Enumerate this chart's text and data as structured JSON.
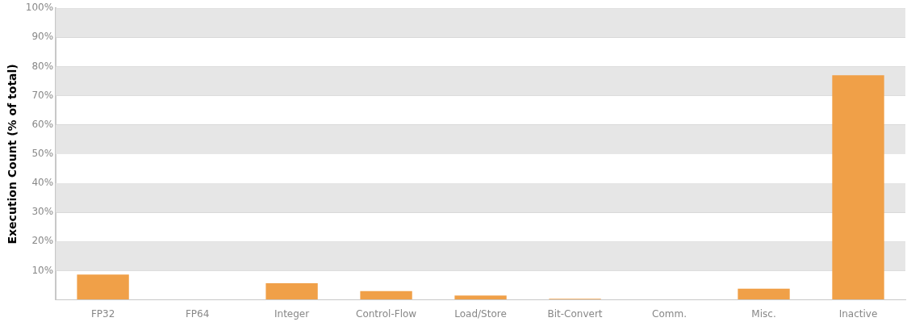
{
  "chart_data": {
    "type": "bar",
    "ylabel": "Execution Count (% of total)",
    "categories": [
      "FP32",
      "FP64",
      "Integer",
      "Control-Flow",
      "Load/Store",
      "Bit-Convert",
      "Comm.",
      "Misc.",
      "Inactive"
    ],
    "values": [
      8.7,
      0,
      5.7,
      3.0,
      1.5,
      0.4,
      0,
      3.8,
      77.0
    ],
    "color": "#f0a048",
    "ylim": [
      0,
      100
    ],
    "yticks": [
      {
        "value": 0,
        "label": null
      },
      {
        "value": 10,
        "label": "10%"
      },
      {
        "value": 20,
        "label": "20%"
      },
      {
        "value": 30,
        "label": "30%"
      },
      {
        "value": 40,
        "label": "40%"
      },
      {
        "value": 50,
        "label": "50%"
      },
      {
        "value": 60,
        "label": "60%"
      },
      {
        "value": 70,
        "label": "70%"
      },
      {
        "value": 80,
        "label": "80%"
      },
      {
        "value": 90,
        "label": "90%"
      },
      {
        "value": 100,
        "label": "100%"
      }
    ],
    "grid": "y",
    "legend": false
  }
}
